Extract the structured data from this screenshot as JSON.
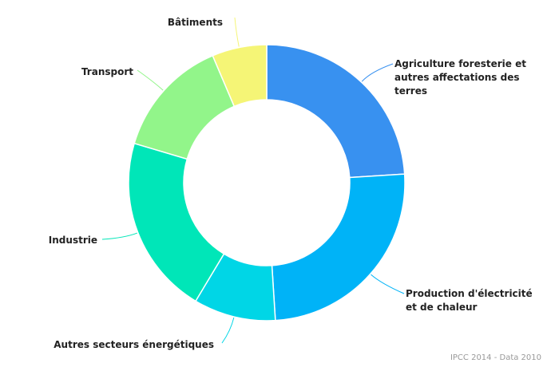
{
  "chart_data": {
    "type": "pie",
    "donut": true,
    "legend": "none",
    "slices": [
      {
        "label": "Agriculture foresterie et autres affectations des terres",
        "value": 24,
        "color": "#3891f0"
      },
      {
        "label": "Production d'électricité et de chaleur",
        "value": 25,
        "color": "#00b3f7"
      },
      {
        "label": "Autres secteurs énergétiques",
        "value": 9.6,
        "color": "#00d6e6"
      },
      {
        "label": "Industrie",
        "value": 21,
        "color": "#00e6b8"
      },
      {
        "label": "Transport",
        "value": 14,
        "color": "#92f58a"
      },
      {
        "label": "Bâtiments",
        "value": 6.4,
        "color": "#f5f576"
      }
    ]
  },
  "credit": "IPCC 2014 - Data 2010"
}
